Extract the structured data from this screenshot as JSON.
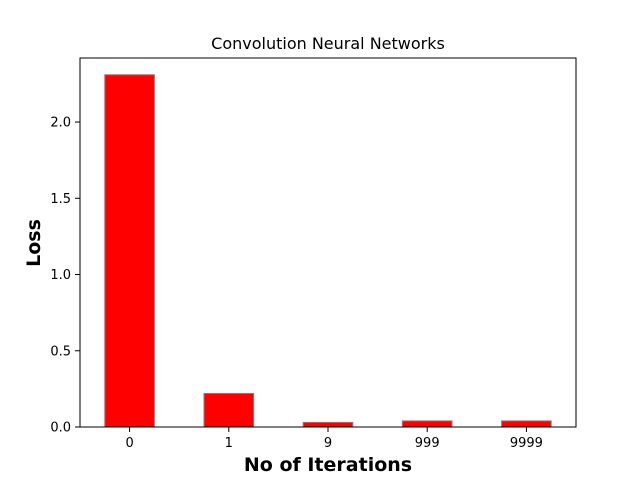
{
  "chart_data": {
    "type": "bar",
    "title": "Convolution Neural Networks",
    "xlabel": "No of Iterations",
    "ylabel": "Loss",
    "categories": [
      "0",
      "1",
      "9",
      "999",
      "9999"
    ],
    "values": [
      2.31,
      0.22,
      0.03,
      0.04,
      0.04
    ],
    "ylim": [
      0,
      2.42
    ],
    "yticks": [
      0.0,
      0.5,
      1.0,
      1.5,
      2.0
    ],
    "ytick_labels": [
      "0.0",
      "0.5",
      "1.0",
      "1.5",
      "2.0"
    ],
    "grid": false,
    "bar_color": "#ff0000",
    "bar_edge_color": "#808080"
  }
}
